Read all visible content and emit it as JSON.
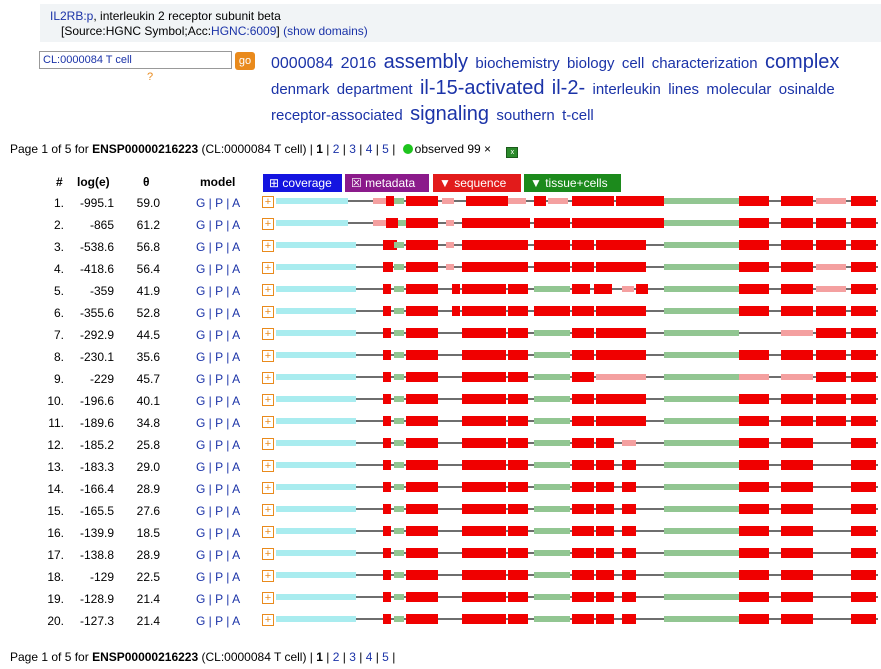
{
  "gene": {
    "symbol": "IL2RB:p",
    "description": ", interleukin 2 receptor subunit beta",
    "source_prefix": "[Source:HGNC Symbol;Acc:",
    "source_acc": "HGNC:6009",
    "source_suffix": "]",
    "show_domains": "(show domains)"
  },
  "search": {
    "value": "CL:0000084 T cell",
    "go_label": "go",
    "help": "?"
  },
  "word_cloud": [
    {
      "text": "0000084",
      "size": 16
    },
    {
      "text": "2016",
      "size": 16
    },
    {
      "text": "assembly",
      "size": 20
    },
    {
      "text": "biochemistry",
      "size": 15
    },
    {
      "text": "biology",
      "size": 15
    },
    {
      "text": "cell",
      "size": 15
    },
    {
      "text": "characterization",
      "size": 15
    },
    {
      "text": "complex",
      "size": 20
    },
    {
      "text": "denmark",
      "size": 15
    },
    {
      "text": "department",
      "size": 15
    },
    {
      "text": "il-15-activated",
      "size": 20
    },
    {
      "text": "il-2-",
      "size": 20
    },
    {
      "text": "interleukin",
      "size": 15
    },
    {
      "text": "lines",
      "size": 15
    },
    {
      "text": "molecular",
      "size": 15
    },
    {
      "text": "osinalde",
      "size": 15
    },
    {
      "text": "receptor-associated",
      "size": 15
    },
    {
      "text": "signaling",
      "size": 20
    },
    {
      "text": "southern",
      "size": 15
    },
    {
      "text": "t-cell",
      "size": 15
    }
  ],
  "pager_top": {
    "prefix": "Page 1 of 5 for ",
    "protein": "ENSP00000216223",
    "context": " (CL:0000084 T cell) | ",
    "current": "1",
    "pages": [
      "2",
      "3",
      "4",
      "5"
    ],
    "observed": "observed 99 ×"
  },
  "pager_bottom": {
    "prefix": "Page 1 of 5 for ",
    "protein": "ENSP00000216223",
    "context": " (CL:0000084 T cell) | ",
    "current": "1",
    "pages": [
      "2",
      "3",
      "4",
      "5"
    ]
  },
  "columns": {
    "num": "#",
    "log": "log(e)",
    "theta": "θ",
    "model": "model"
  },
  "tabs": [
    {
      "label": "⊞ coverage",
      "color": "#1414e0"
    },
    {
      "label": "☒ metadata",
      "color": "#8b1a8b"
    },
    {
      "label": "▼ sequence",
      "color": "#e21b1b"
    },
    {
      "label": "▼ tissue+cells",
      "color": "#1c8a1c"
    }
  ],
  "model_links": [
    "G",
    "P",
    "A"
  ],
  "expand_glyph": "+",
  "colors": {
    "red": "#f00000",
    "light_red": "#f4a0a0",
    "green": "#92c692",
    "cyan": "#a9ecef",
    "line": "#6e6e6e",
    "link": "#1b33a8"
  },
  "rows": [
    {
      "n": "1.",
      "log": "-995.1",
      "theta": "59.0"
    },
    {
      "n": "2.",
      "log": "-865",
      "theta": "61.2"
    },
    {
      "n": "3.",
      "log": "-538.6",
      "theta": "56.8"
    },
    {
      "n": "4.",
      "log": "-418.6",
      "theta": "56.4"
    },
    {
      "n": "5.",
      "log": "-359",
      "theta": "41.9"
    },
    {
      "n": "6.",
      "log": "-355.6",
      "theta": "52.8"
    },
    {
      "n": "7.",
      "log": "-292.9",
      "theta": "44.5"
    },
    {
      "n": "8.",
      "log": "-230.1",
      "theta": "35.6"
    },
    {
      "n": "9.",
      "log": "-229",
      "theta": "45.7"
    },
    {
      "n": "10.",
      "log": "-196.6",
      "theta": "40.1"
    },
    {
      "n": "11.",
      "log": "-189.6",
      "theta": "34.8"
    },
    {
      "n": "12.",
      "log": "-185.2",
      "theta": "25.8"
    },
    {
      "n": "13.",
      "log": "-183.3",
      "theta": "29.0"
    },
    {
      "n": "14.",
      "log": "-166.4",
      "theta": "28.9"
    },
    {
      "n": "15.",
      "log": "-165.5",
      "theta": "27.6"
    },
    {
      "n": "16.",
      "log": "-139.9",
      "theta": "18.5"
    },
    {
      "n": "17.",
      "log": "-138.8",
      "theta": "28.9"
    },
    {
      "n": "18.",
      "log": "-129",
      "theta": "22.5"
    },
    {
      "n": "19.",
      "log": "-128.9",
      "theta": "21.4"
    },
    {
      "n": "20.",
      "log": "-127.3",
      "theta": "21.4"
    }
  ]
}
